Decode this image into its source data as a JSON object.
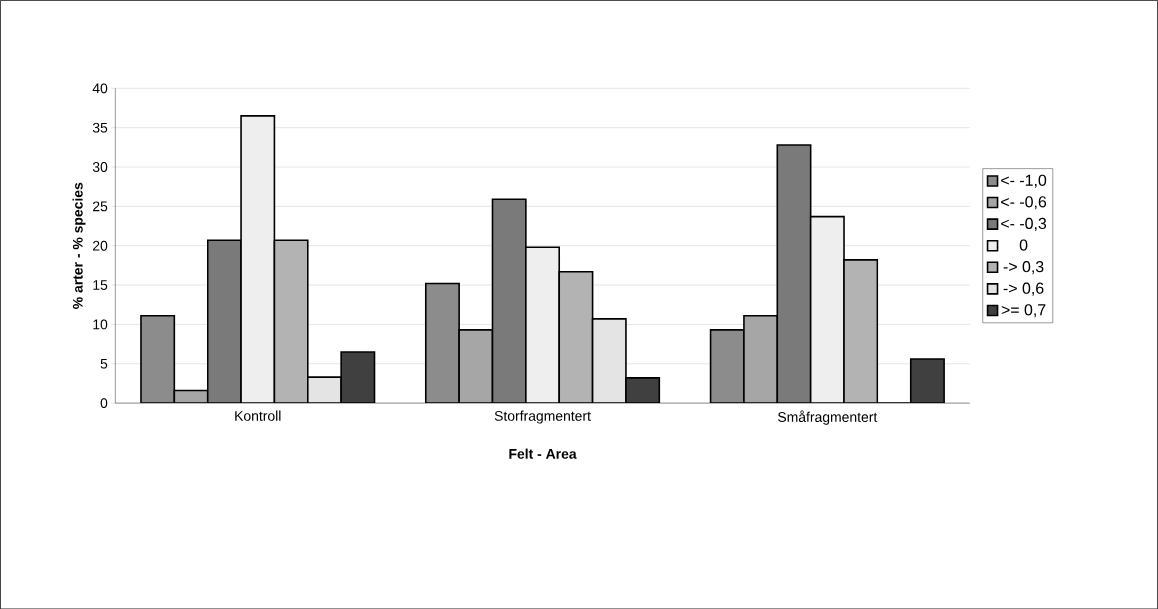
{
  "chart_data": {
    "type": "bar",
    "xlabel": "Felt - Area",
    "ylabel": "% arter - % species",
    "categories": [
      "Kontroll",
      "Storfragmentert",
      "Småfragmentert"
    ],
    "series": [
      {
        "name": "<- -1,0",
        "color": "#8c8c8c",
        "values": [
          11.1,
          15.2,
          9.3
        ]
      },
      {
        "name": "<- -0,6",
        "color": "#a6a6a6",
        "values": [
          1.6,
          9.3,
          11.1
        ]
      },
      {
        "name": "<- -0,3",
        "color": "#7a7a7a",
        "values": [
          20.7,
          25.9,
          32.8
        ]
      },
      {
        "name": "0",
        "color": "#eeeeee",
        "values": [
          36.5,
          19.8,
          23.7
        ]
      },
      {
        "name": "-> 0,3",
        "color": "#b3b3b3",
        "values": [
          20.7,
          16.7,
          18.2
        ]
      },
      {
        "name": "-> 0,6",
        "color": "#e4e4e4",
        "values": [
          3.3,
          10.7,
          0
        ]
      },
      {
        "name": ">= 0,7",
        "color": "#404040",
        "values": [
          6.5,
          3.2,
          5.6
        ]
      }
    ],
    "ylim": [
      0,
      40
    ],
    "yticks": [
      0,
      5,
      10,
      15,
      20,
      25,
      30,
      35,
      40
    ],
    "grid": "y",
    "legend": "right"
  }
}
